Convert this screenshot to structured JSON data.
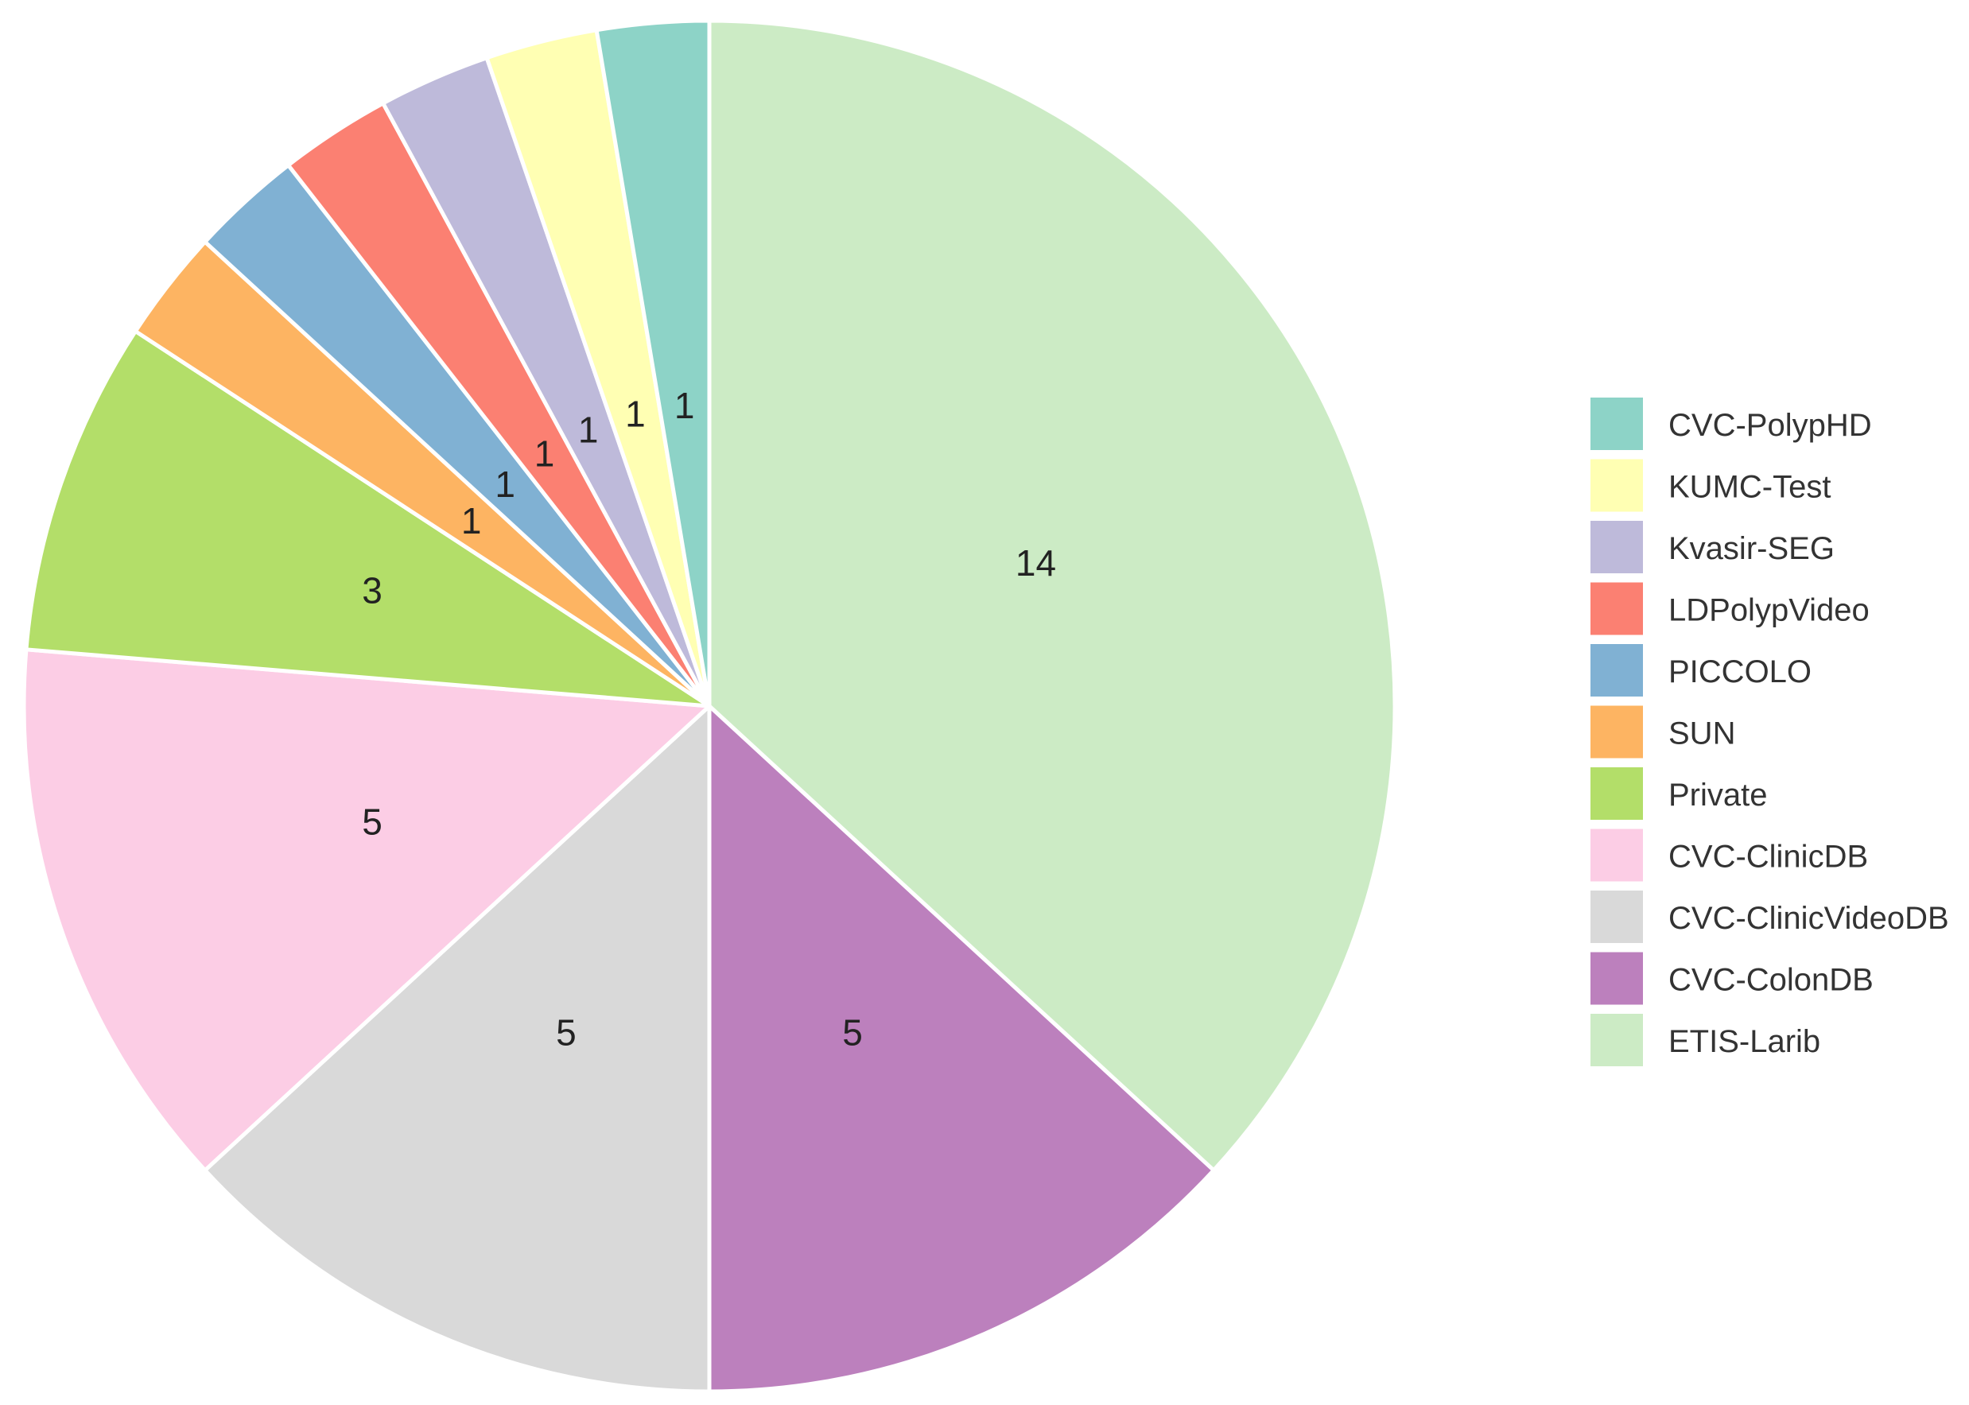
{
  "chart_data": {
    "type": "pie",
    "title": "",
    "slices": [
      {
        "label": "ETIS-Larib",
        "value": 14,
        "color": "#CCEBC5"
      },
      {
        "label": "CVC-ColonDB",
        "value": 5,
        "color": "#BC80BD"
      },
      {
        "label": "CVC-ClinicVideoDB",
        "value": 5,
        "color": "#D9D9D9"
      },
      {
        "label": "CVC-ClinicDB",
        "value": 5,
        "color": "#FCCDE5"
      },
      {
        "label": "Private",
        "value": 3,
        "color": "#B3DE69"
      },
      {
        "label": "SUN",
        "value": 1,
        "color": "#FDB462"
      },
      {
        "label": "PICCOLO",
        "value": 1,
        "color": "#80B1D3"
      },
      {
        "label": "LDPolypVideo",
        "value": 1,
        "color": "#FB8072"
      },
      {
        "label": "Kvasir-SEG",
        "value": 1,
        "color": "#BEBADA"
      },
      {
        "label": "KUMC-Test",
        "value": 1,
        "color": "#FFFFB3"
      },
      {
        "label": "CVC-PolypHD",
        "value": 1,
        "color": "#8DD3C7"
      }
    ],
    "legend": {
      "position": "right",
      "order": [
        "CVC-PolypHD",
        "KUMC-Test",
        "Kvasir-SEG",
        "LDPolypVideo",
        "PICCOLO",
        "SUN",
        "Private",
        "CVC-ClinicDB",
        "CVC-ClinicVideoDB",
        "CVC-ColonDB",
        "ETIS-Larib"
      ]
    }
  }
}
